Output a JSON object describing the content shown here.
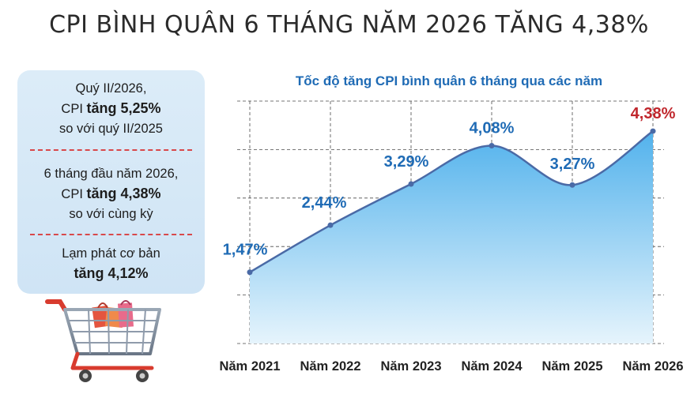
{
  "title": "CPI BÌNH QUÂN 6 THÁNG NĂM 2026 TĂNG 4,38%",
  "side_panel": {
    "block1": {
      "line1": "Quý II/2026,",
      "prefix": "CPI ",
      "emph": "tăng 5,25%",
      "line3": "so với quý II/2025"
    },
    "block2": {
      "line1": "6 tháng đầu năm 2026,",
      "prefix": "CPI ",
      "emph": "tăng 4,38%",
      "line3": "so với cùng kỳ"
    },
    "block3": {
      "line1": "Lạm phát cơ bản",
      "emph": "tăng 4,12%"
    }
  },
  "colors": {
    "line": "#4a6aa6",
    "label": "#1f6bb5",
    "highlight": "#c0262c",
    "area_top": "#52b2ec",
    "area_bottom": "#e6f4fc",
    "grid": "#4a4a4a"
  },
  "chart_data": {
    "type": "area",
    "title": "Tốc độ tăng CPI bình quân 6 tháng qua các năm",
    "categories": [
      "Năm 2021",
      "Năm 2022",
      "Năm 2023",
      "Năm 2024",
      "Năm 2025",
      "Năm 2026"
    ],
    "series": [
      {
        "values": [
          1.47,
          2.44,
          3.29,
          4.08,
          3.27,
          4.38
        ]
      }
    ],
    "value_labels": [
      "1,47%",
      "2,44%",
      "3,29%",
      "4,08%",
      "3,27%",
      "4,38%"
    ],
    "highlight_index": 5,
    "ylim": [
      0,
      5.0
    ],
    "grid": true,
    "xlabel": "",
    "ylabel": ""
  }
}
